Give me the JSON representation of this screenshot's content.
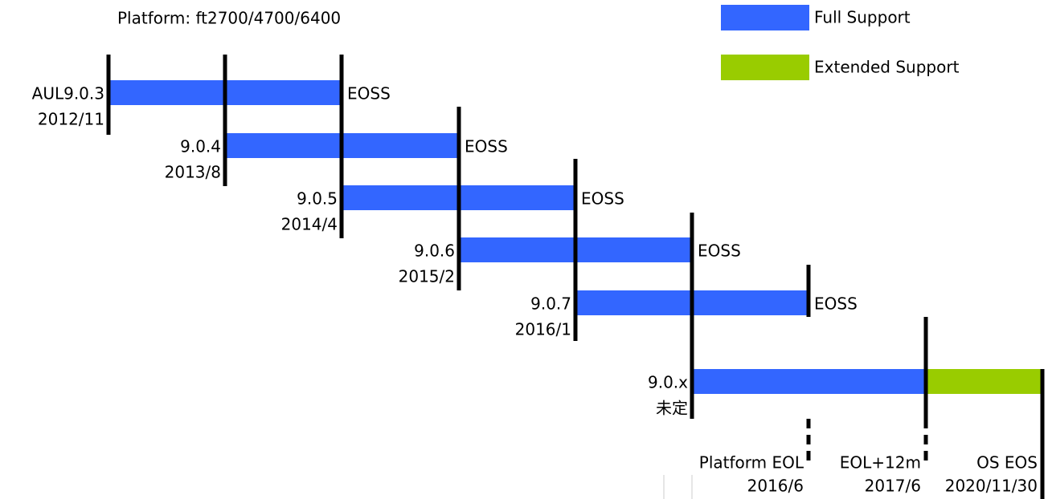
{
  "title": "Platform: ft2700/4700/6400",
  "legend": [
    {
      "label": "Full Support",
      "color": "#3366ff"
    },
    {
      "label": "Extended Support",
      "color": "#99cc00"
    }
  ],
  "releases": [
    {
      "name": "AUL9.0.3",
      "date": "2012/11",
      "end": "EOSS"
    },
    {
      "name": "9.0.4",
      "date": "2013/8",
      "end": "EOSS"
    },
    {
      "name": "9.0.5",
      "date": "2014/4",
      "end": "EOSS"
    },
    {
      "name": "9.0.6",
      "date": "2015/2",
      "end": "EOSS"
    },
    {
      "name": "9.0.7",
      "date": "2016/1",
      "end": "EOSS"
    },
    {
      "name": "9.0.x",
      "date": "未定"
    }
  ],
  "milestones": [
    {
      "label": "Platform EOL",
      "date": "2016/6"
    },
    {
      "label": "EOL+12m",
      "date": "2017/6"
    },
    {
      "label": "OS EOS",
      "date": "2020/11/30"
    }
  ]
}
